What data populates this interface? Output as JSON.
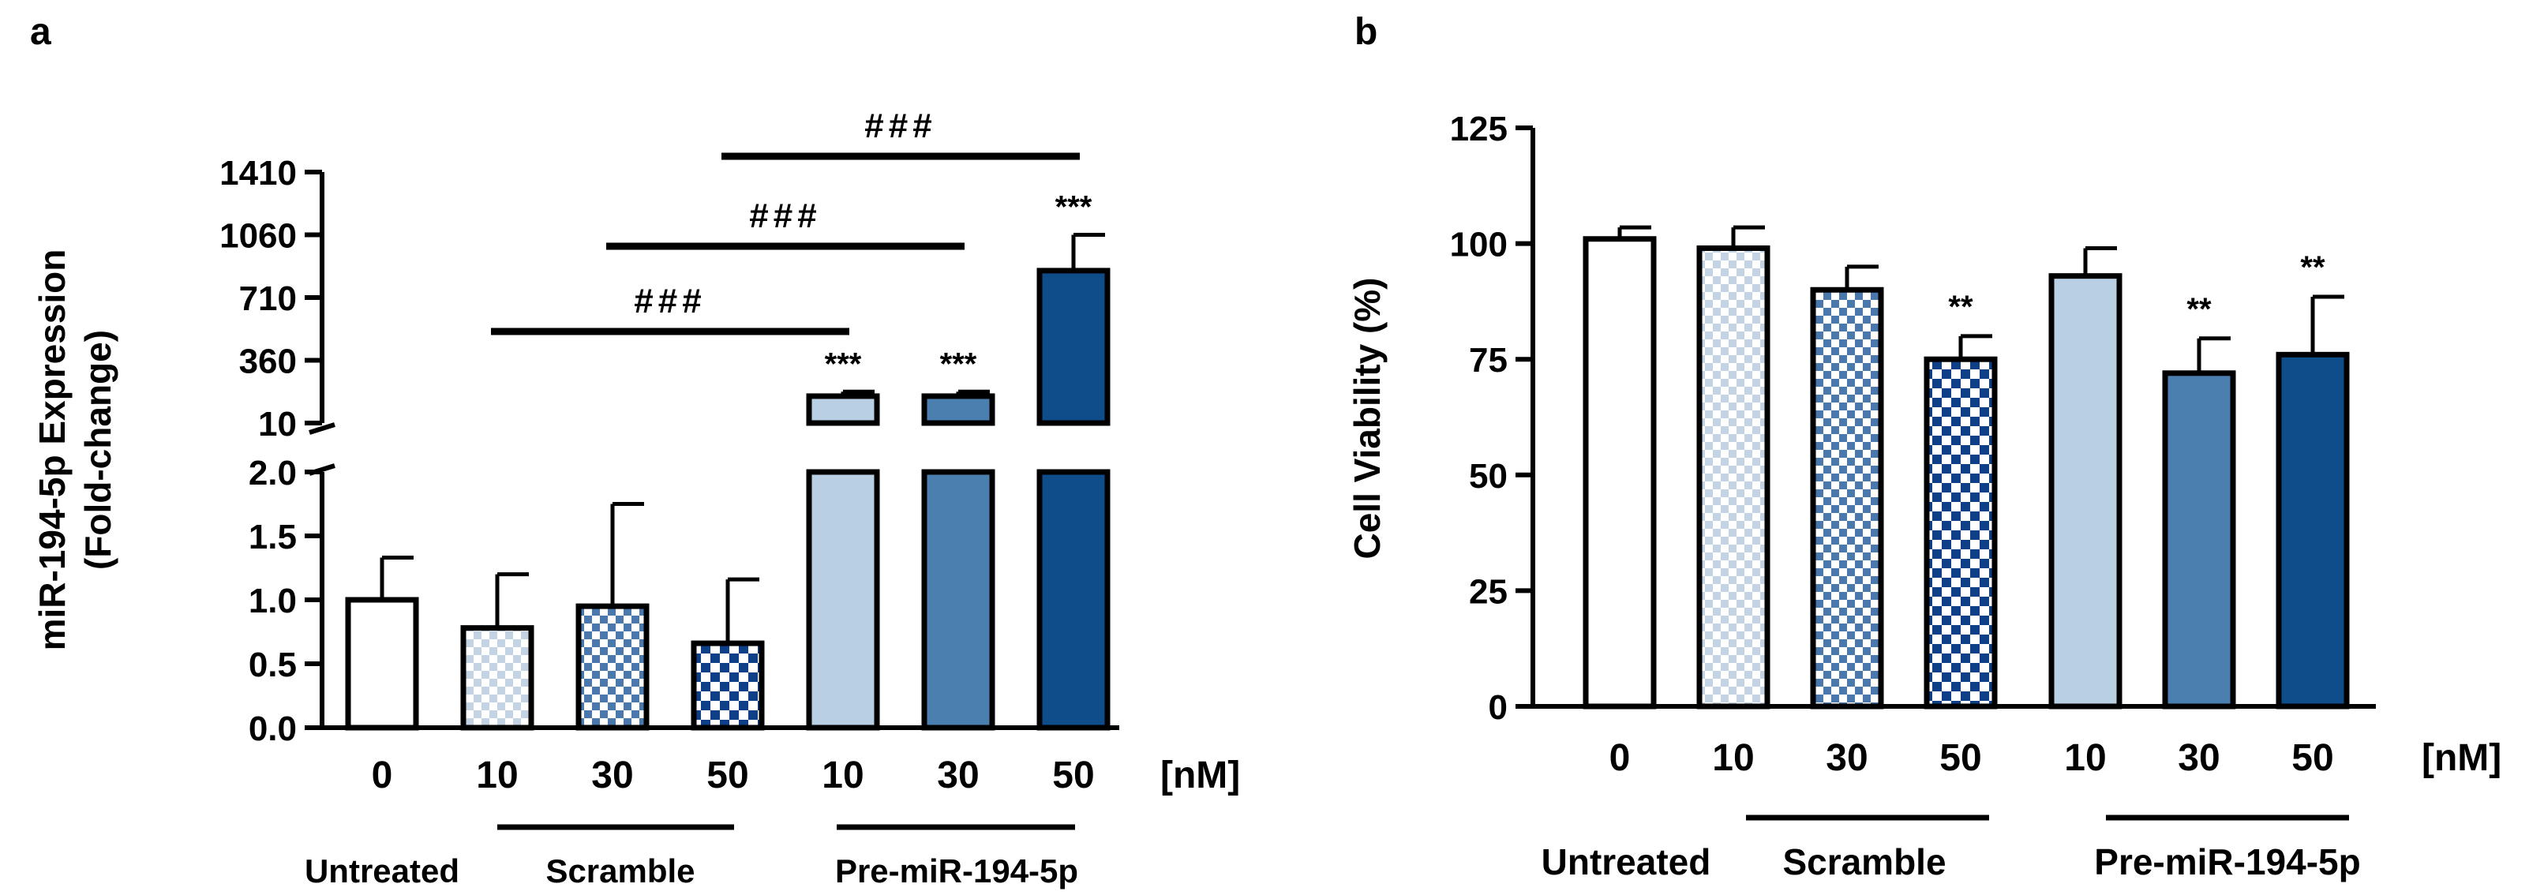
{
  "panels": {
    "a": "a",
    "b": "b"
  },
  "chart_data": [
    {
      "type": "bar",
      "panel": "a",
      "ylabel_line1": "miR-194-5p Expression",
      "ylabel_line2": "(Fold-change)",
      "axis_break": true,
      "ylim_lower": [
        0,
        2.0
      ],
      "ylim_upper": [
        10,
        1410
      ],
      "yticks_lower": [
        "0.0",
        "0.5",
        "1.0",
        "1.5",
        "2.0"
      ],
      "yticks_upper": [
        "10",
        "360",
        "710",
        "1060",
        "1410"
      ],
      "categories": [
        "0",
        "10",
        "30",
        "50",
        "10",
        "30",
        "50"
      ],
      "unit_label": "[nM]",
      "groups": [
        "Untreated",
        "Scramble",
        "Pre-miR-194-5p"
      ],
      "values": [
        1.0,
        0.78,
        0.95,
        0.66,
        160,
        160,
        860
      ],
      "errors": [
        0.33,
        0.42,
        0.8,
        0.5,
        25,
        25,
        200
      ],
      "significance": [
        "",
        "",
        "",
        "",
        "***",
        "***",
        "***"
      ],
      "comparisons": [
        {
          "from": 1,
          "to": 4,
          "label": "###"
        },
        {
          "from": 2,
          "to": 5,
          "label": "###"
        },
        {
          "from": 3,
          "to": 6,
          "label": "###"
        }
      ],
      "fills": [
        "#ffffff",
        "checker-light",
        "checker-mid",
        "checker-dark",
        "#b9cfe4",
        "#4a7fb0",
        "#0e4c8a"
      ]
    },
    {
      "type": "bar",
      "panel": "b",
      "ylabel": "Cell Viability (%)",
      "ylim": [
        0,
        125
      ],
      "yticks": [
        "0",
        "25",
        "50",
        "75",
        "100",
        "125"
      ],
      "categories": [
        "0",
        "10",
        "30",
        "50",
        "10",
        "30",
        "50"
      ],
      "unit_label": "[nM]",
      "groups": [
        "Untreated",
        "Scramble",
        "Pre-miR-194-5p"
      ],
      "values": [
        101,
        99,
        90,
        75,
        93,
        72,
        76
      ],
      "errors": [
        2.5,
        4.5,
        5,
        5,
        6,
        7.5,
        12.5
      ],
      "significance": [
        "",
        "",
        "",
        "**",
        "",
        "**",
        "**"
      ],
      "fills": [
        "#ffffff",
        "checker-light",
        "checker-mid",
        "checker-dark",
        "#b9cfe4",
        "#4a7fb0",
        "#0e4c8a"
      ]
    }
  ]
}
